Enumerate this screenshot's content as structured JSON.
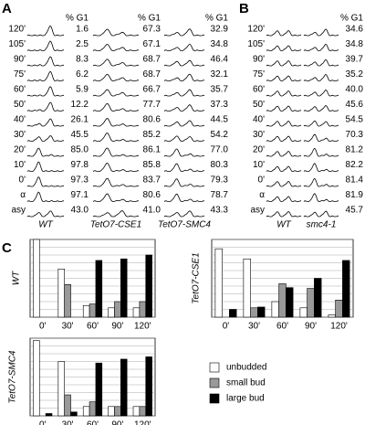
{
  "panel_A": {
    "label": "A",
    "row_labels": [
      "120'",
      "105'",
      "90'",
      "75'",
      "60'",
      "50'",
      "40'",
      "30'",
      "20'",
      "10'",
      "0'",
      "α",
      "asy"
    ],
    "columns": [
      {
        "name": "WT",
        "header": "% G1",
        "values": [
          "1.6",
          "2.5",
          "8.3",
          "6.2",
          "5.9",
          "12.2",
          "26.1",
          "45.5",
          "85.0",
          "97.8",
          "97.3",
          "97.1",
          "43.0"
        ]
      },
      {
        "name": "TetO7-CSE1",
        "header": "% G1",
        "values": [
          "67.3",
          "67.1",
          "68.7",
          "68.7",
          "66.7",
          "77.7",
          "80.6",
          "85.2",
          "86.1",
          "85.8",
          "83.7",
          "80.6",
          "41.0"
        ]
      },
      {
        "name": "TetO7-SMC4",
        "header": "% G1",
        "values": [
          "32.9",
          "34.8",
          "46.4",
          "32.1",
          "35.7",
          "37.3",
          "44.5",
          "54.2",
          "77.0",
          "80.3",
          "79.3",
          "78.7",
          "43.3"
        ]
      }
    ]
  },
  "panel_B": {
    "label": "B",
    "row_labels": [
      "120'",
      "105'",
      "90'",
      "75'",
      "60'",
      "50'",
      "40'",
      "30'",
      "20'",
      "10'",
      "0'",
      "α",
      "asy"
    ],
    "columns": [
      {
        "name": "WT"
      },
      {
        "name": "smc4-1",
        "header": "% G1",
        "values": [
          "34.6",
          "34.8",
          "39.7",
          "35.2",
          "40.0",
          "45.6",
          "54.5",
          "70.3",
          "81.2",
          "82.2",
          "81.4",
          "81.9",
          "45.7"
        ]
      }
    ]
  },
  "panel_C_label": "C",
  "chart_data": [
    {
      "type": "bar",
      "ylabel": "WT",
      "categories": [
        "0'",
        "30'",
        "60'",
        "90'",
        "120'"
      ],
      "ylim": [
        0,
        100
      ],
      "yticks": [
        0,
        10,
        20,
        30,
        40,
        50,
        60,
        70,
        80,
        90,
        100
      ],
      "grid": true,
      "series": [
        {
          "name": "unbudded",
          "color": "#ffffff",
          "values": [
            100,
            62,
            15,
            12,
            12
          ]
        },
        {
          "name": "small bud",
          "color": "#999999",
          "values": [
            0,
            42,
            17,
            20,
            20
          ]
        },
        {
          "name": "large bud",
          "color": "#000000",
          "values": [
            0,
            0,
            73,
            75,
            80
          ]
        }
      ]
    },
    {
      "type": "bar",
      "ylabel": "TetO7-CSE1",
      "categories": [
        "0'",
        "30'",
        "60'",
        "90'",
        "120'"
      ],
      "ylim": [
        0,
        100
      ],
      "yticks": [
        0,
        10,
        20,
        30,
        40,
        50,
        60,
        70,
        80,
        90,
        100
      ],
      "grid": true,
      "series": [
        {
          "name": "unbudded",
          "color": "#ffffff",
          "values": [
            88,
            75,
            20,
            12,
            3
          ]
        },
        {
          "name": "small bud",
          "color": "#999999",
          "values": [
            0,
            12,
            43,
            37,
            22
          ]
        },
        {
          "name": "large bud",
          "color": "#000000",
          "values": [
            10,
            13,
            38,
            50,
            73
          ]
        }
      ]
    },
    {
      "type": "bar",
      "ylabel": "TetO7-SMC4",
      "categories": [
        "0'",
        "30'",
        "60'",
        "90'",
        "120'"
      ],
      "ylim": [
        0,
        100
      ],
      "yticks": [
        0,
        10,
        20,
        30,
        40,
        50,
        60,
        70,
        80,
        90,
        100
      ],
      "grid": true,
      "series": [
        {
          "name": "unbudded",
          "color": "#ffffff",
          "values": [
            97,
            70,
            12,
            12,
            12
          ]
        },
        {
          "name": "small bud",
          "color": "#999999",
          "values": [
            0,
            27,
            18,
            12,
            12
          ]
        },
        {
          "name": "large bud",
          "color": "#000000",
          "values": [
            3,
            5,
            68,
            73,
            76
          ]
        }
      ]
    }
  ]
}
